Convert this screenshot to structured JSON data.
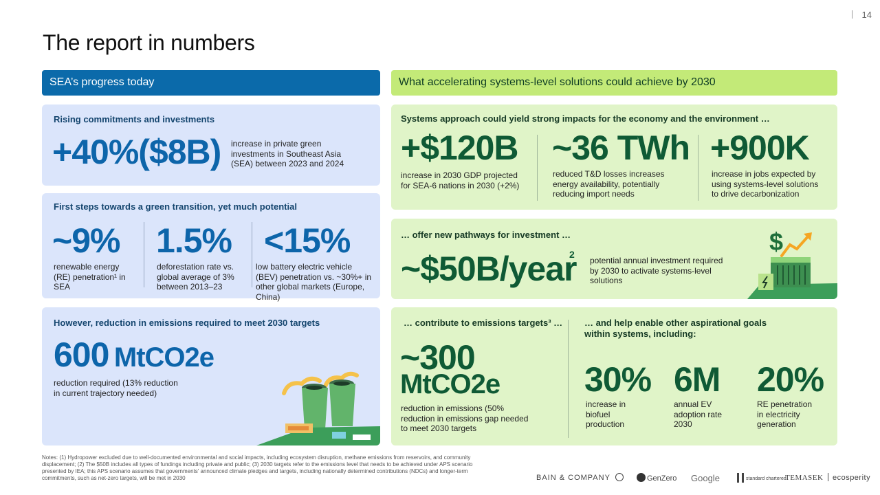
{
  "page_number": "14",
  "title": "The report in numbers",
  "left_header": "SEA’s progress today",
  "right_header": "What accelerating systems-level solutions could achieve by 2030",
  "commitments": {
    "title": "Rising commitments and investments",
    "value": "+40%($8B)",
    "desc": "increase in private green investments in Southeast Asia (SEA) between 2023 and 2024"
  },
  "first_steps": {
    "title": "First steps towards a green transition, yet much potential",
    "stats": [
      {
        "value": "~9%",
        "desc": "renewable energy (RE) penetration¹ in SEA"
      },
      {
        "value": "1.5%",
        "desc": "deforestation rate vs. global average of 3% between 2013–23"
      },
      {
        "value": "<15%",
        "desc": "low battery electric vehicle (BEV) penetration vs. ~30%+ in other global markets (Europe, China)"
      }
    ]
  },
  "emissions_left": {
    "title": "However, reduction in emissions required to meet 2030 targets",
    "value": "600",
    "unit": "MtCO2e",
    "desc": "reduction required (13% reduction in current trajectory needed)"
  },
  "systems": {
    "title": "Systems approach could yield strong impacts for the economy and the environment …",
    "stats": [
      {
        "value": "+$120B",
        "desc": "increase in 2030 GDP projected for SEA-6 nations in 2030 (+2%)"
      },
      {
        "value": "~36 TWh",
        "desc": "reduced T&D losses increases energy availability, potentially reducing import needs"
      },
      {
        "value": "+900K",
        "desc": "increase in jobs expected by using systems-level solutions to drive decarbonization"
      }
    ]
  },
  "investment": {
    "title": "… offer new pathways for investment …",
    "value": "~$50B/year",
    "sup": "2",
    "desc": "potential annual investment required by 2030 to activate systems-level solutions"
  },
  "contribute": {
    "title": "… contribute to emissions targets³ …",
    "value_line1": "~300",
    "value_line2": "MtCO2e",
    "desc": "reduction in emissions (50% reduction in emissions gap needed to meet 2030 targets"
  },
  "aspirational": {
    "title": "… and help enable other aspirational goals within systems, including:",
    "stats": [
      {
        "value": "30%",
        "desc": "increase in biofuel production"
      },
      {
        "value": "6M",
        "desc": "annual EV adoption rate 2030"
      },
      {
        "value": "20%",
        "desc": "RE penetration in electricity generation"
      }
    ]
  },
  "notes": "Notes: (1) Hydropower excluded due to well-documented environmental and social impacts, including ecosystem disruption, methane emissions from reservoirs, and community displacement; (2) The $50B includes all types of fundings including private and public; (3) 2030 targets refer to the emissions level that needs to be achieved under APS scenario presented by IEA; this APS scenario assumes that governments' announced climate pledges and targets, including nationally determined contributions (NDCs) and longer-term commitments, such as net-zero targets, will be met in 2030",
  "logos": [
    "BAIN & COMPANY",
    "GenZero",
    "Google",
    "standard chartered",
    "TEMASEK",
    "ecosperity"
  ],
  "colors": {
    "left_header": "#0b6aaa",
    "right_header": "#c3ea78",
    "blue_card": "#dbe5fb",
    "green_card": "#e0f4c8",
    "blue_figure": "#0d65aa",
    "green_figure": "#0f5a35"
  }
}
